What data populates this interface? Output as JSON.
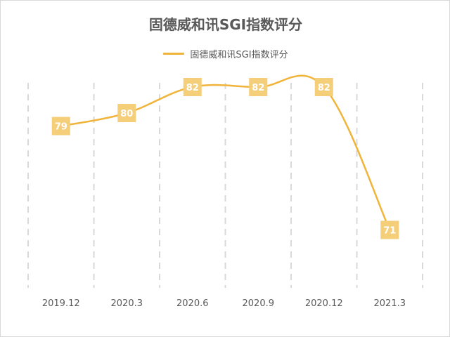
{
  "chart_data": {
    "type": "line",
    "title": "固德威和讯SGI指数评分",
    "categories": [
      "2019.12",
      "2020.3",
      "2020.6",
      "2020.9",
      "2020.12",
      "2021.3"
    ],
    "series": [
      {
        "name": "固德威和讯SGI指数评分",
        "values": [
          79,
          80,
          82,
          82,
          82,
          71
        ]
      }
    ],
    "xlabel": "",
    "ylabel": "",
    "ylim": [
      66,
      86
    ],
    "grid": "vertical dashed",
    "legend_position": "top-center",
    "show_data_labels": true,
    "colors": {
      "line": "#F0B43A",
      "label_bg": "#F5CE79",
      "label_text": "#ffffff",
      "grid": "#d9d9d9",
      "text": "#595959"
    }
  }
}
